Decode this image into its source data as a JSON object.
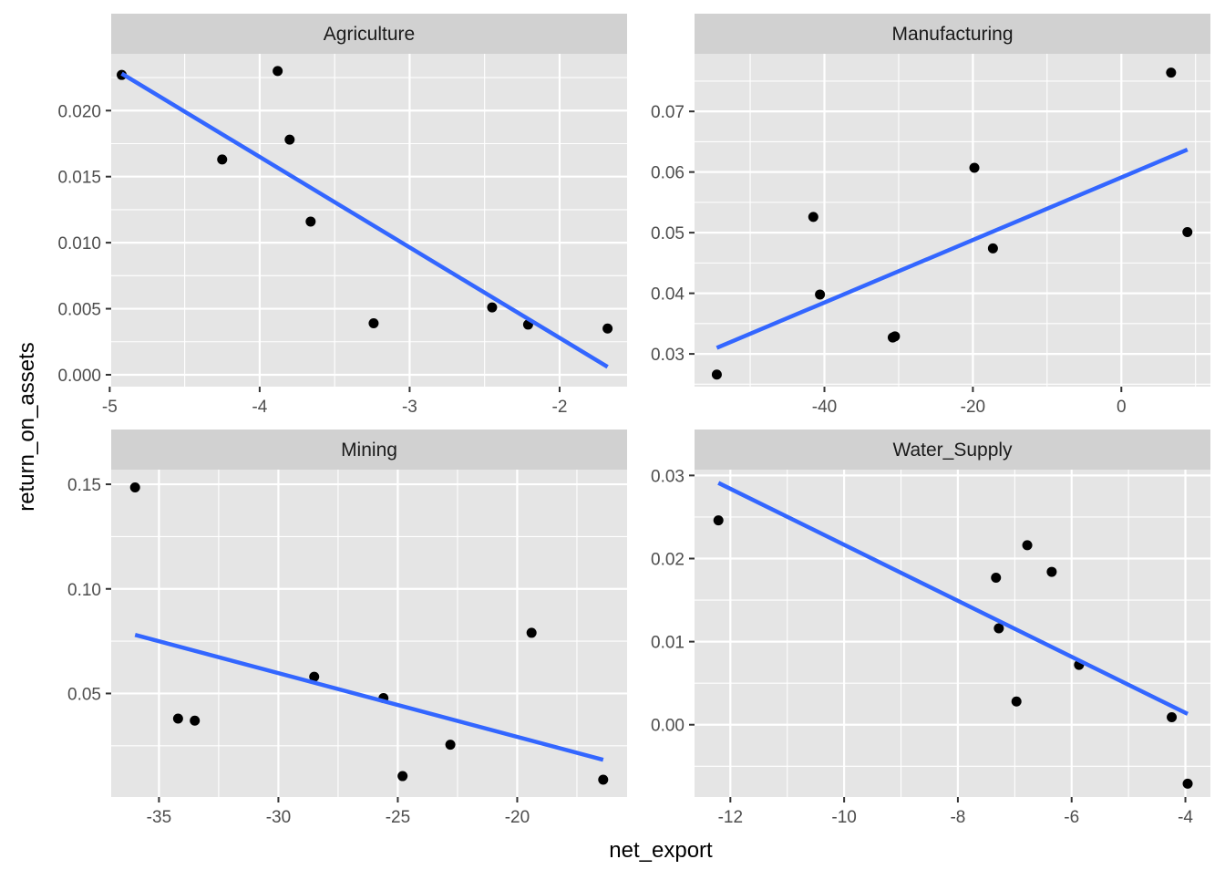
{
  "xlabel": "net_export",
  "ylabel": "return_on_assets",
  "colors": {
    "panel_background": "#e5e5e5",
    "strip_background": "#d1d1d1",
    "grid_major": "#ffffff",
    "points": "#000000",
    "fit_line": "#3366ff"
  },
  "chart_data": [
    {
      "type": "scatter",
      "title": "Agriculture",
      "xlabel": "net_export",
      "ylabel": "return_on_assets",
      "xlim": [
        -4.99,
        -1.55
      ],
      "ylim": [
        -0.0009,
        0.0243
      ],
      "xticks": [
        -5,
        -4,
        -3,
        -2
      ],
      "xticklabels": [
        "-5",
        "-4",
        "-3",
        "-2"
      ],
      "yticks": [
        0,
        0.005,
        0.01,
        0.015,
        0.02
      ],
      "yticklabels": [
        "0.000",
        "0.005",
        "0.010",
        "0.015",
        "0.020"
      ],
      "grid": true,
      "x": [
        -4.92,
        -4.25,
        -3.88,
        -3.8,
        -3.66,
        -3.24,
        -2.45,
        -2.21,
        -1.68
      ],
      "y": [
        0.0227,
        0.0163,
        0.023,
        0.0178,
        0.0116,
        0.0039,
        0.0051,
        0.0038,
        0.0035
      ],
      "fit": {
        "x": [
          -4.92,
          -1.68
        ],
        "y": [
          0.0228,
          0.0006
        ]
      }
    },
    {
      "type": "scatter",
      "title": "Manufacturing",
      "xlabel": "net_export",
      "ylabel": "return_on_assets",
      "xlim": [
        -57.5,
        12.0
      ],
      "ylim": [
        0.0246,
        0.0795
      ],
      "xticks": [
        -40,
        -20,
        0
      ],
      "xticklabels": [
        "-40",
        "-20",
        "0"
      ],
      "yticks": [
        0.03,
        0.04,
        0.05,
        0.06,
        0.07
      ],
      "yticklabels": [
        "0.03",
        "0.04",
        "0.05",
        "0.06",
        "0.07"
      ],
      "grid": true,
      "x": [
        -54.5,
        -41.5,
        -40.6,
        -30.8,
        -30.5,
        -19.8,
        -17.3,
        6.7,
        8.9
      ],
      "y": [
        0.0266,
        0.0526,
        0.0398,
        0.0327,
        0.0329,
        0.0607,
        0.0474,
        0.0764,
        0.0501
      ],
      "fit": {
        "x": [
          -54.5,
          8.9
        ],
        "y": [
          0.031,
          0.0637
        ]
      }
    },
    {
      "type": "scatter",
      "title": "Mining",
      "xlabel": "net_export",
      "ylabel": "return_on_assets",
      "xlim": [
        -37.0,
        -15.4
      ],
      "ylim": [
        0.0005,
        0.157
      ],
      "xticks": [
        -35,
        -30,
        -25,
        -20
      ],
      "xticklabels": [
        "-35",
        "-30",
        "-25",
        "-20"
      ],
      "yticks": [
        0.05,
        0.1,
        0.15
      ],
      "yticklabels": [
        "0.05",
        "0.10",
        "0.15"
      ],
      "grid": true,
      "x": [
        -36.0,
        -34.2,
        -33.5,
        -28.5,
        -25.6,
        -24.8,
        -22.8,
        -19.4,
        -16.4
      ],
      "y": [
        0.1485,
        0.038,
        0.037,
        0.058,
        0.0478,
        0.0105,
        0.0255,
        0.079,
        0.0088
      ],
      "fit": {
        "x": [
          -36.0,
          -16.4
        ],
        "y": [
          0.078,
          0.0183
        ]
      }
    },
    {
      "type": "scatter",
      "title": "Water_Supply",
      "xlabel": "net_export",
      "ylabel": "return_on_assets",
      "xlim": [
        -12.63,
        -3.56
      ],
      "ylim": [
        -0.0087,
        0.0307
      ],
      "xticks": [
        -12,
        -10,
        -8,
        -6,
        -4
      ],
      "xticklabels": [
        "-12",
        "-10",
        "-8",
        "-6",
        "-4"
      ],
      "yticks": [
        0,
        0.01,
        0.02,
        0.03
      ],
      "yticklabels": [
        "0.00",
        "0.01",
        "0.02",
        "0.03"
      ],
      "grid": true,
      "x": [
        -12.21,
        -7.33,
        -7.28,
        -6.97,
        -6.78,
        -6.35,
        -5.87,
        -4.24,
        -3.96
      ],
      "y": [
        0.0246,
        0.0177,
        0.0116,
        0.0028,
        0.0216,
        0.0184,
        0.0072,
        0.0009,
        -0.0071
      ],
      "fit": {
        "x": [
          -12.21,
          -3.96
        ],
        "y": [
          0.0291,
          0.0013
        ]
      }
    }
  ]
}
